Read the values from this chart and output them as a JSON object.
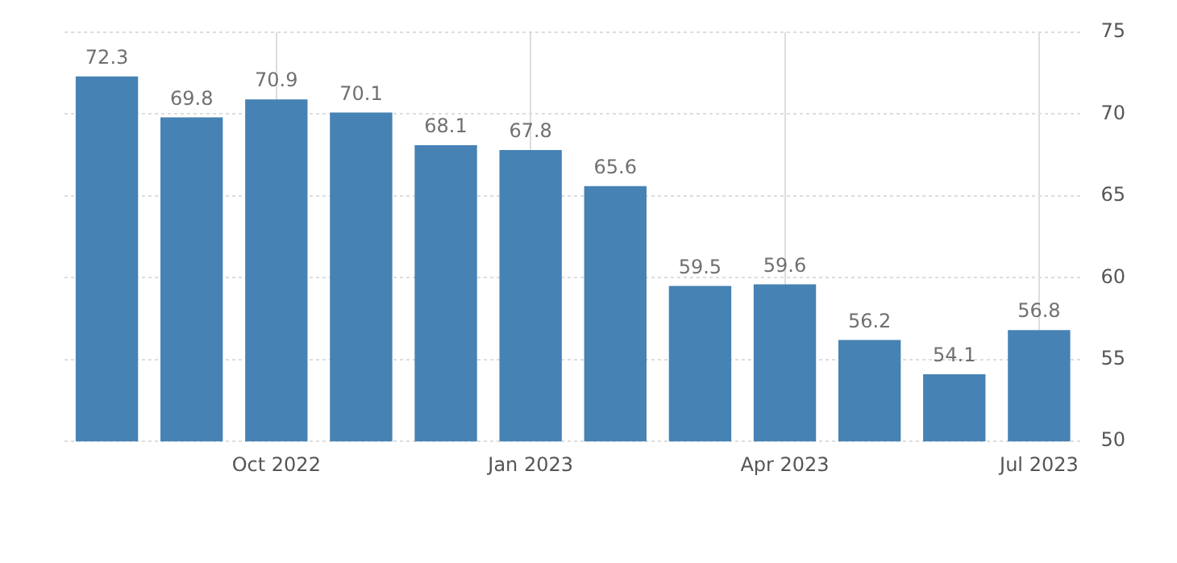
{
  "chart_data": {
    "type": "bar",
    "categories": [
      null,
      null,
      "Oct 2022",
      null,
      null,
      "Jan 2023",
      null,
      null,
      "Apr 2023",
      null,
      null,
      "Jul 2023"
    ],
    "values": [
      72.3,
      69.8,
      70.9,
      70.1,
      68.1,
      67.8,
      65.6,
      59.5,
      59.6,
      56.2,
      54.1,
      56.8
    ],
    "color": "#4682b4",
    "ylim": [
      50,
      75
    ],
    "yticks": [
      50,
      55,
      60,
      65,
      70,
      75
    ],
    "grid": true,
    "data_labels": true,
    "legend": false
  }
}
